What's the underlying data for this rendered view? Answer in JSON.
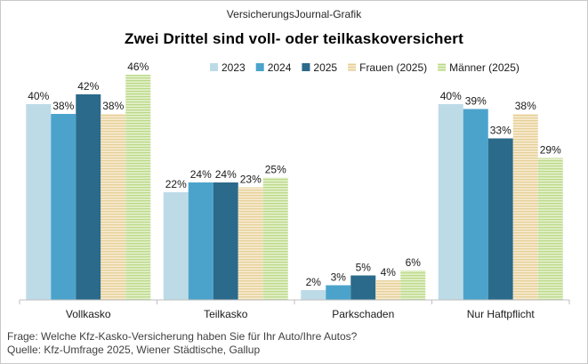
{
  "header": {
    "source_label": "VersicherungsJournal-Grafik"
  },
  "footer": {
    "question": "Frage:  Welche Kfz-Kasko-Versicherung  haben  Sie für Ihr Auto/Ihre  Autos?",
    "source": "Quelle:  Kfz-Umfrage  2025,  Wiener Städtische, Gallup"
  },
  "colors": {
    "2023": "#bddbe7",
    "2024": "#4ba3cc",
    "2025": "#2b6a8a",
    "frauen": "#efdcae",
    "maenner": "#cfe6a3"
  },
  "chart_data": {
    "type": "bar",
    "title": "Zwei Drittel sind voll- oder teilkaskoversichert",
    "xlabel": "",
    "ylabel": "",
    "ylim": [
      0,
      50
    ],
    "grid": false,
    "legend": "top-right",
    "categories": [
      "Vollkasko",
      "Teilkasko",
      "Parkschaden",
      "Nur Haftpflicht"
    ],
    "series": [
      {
        "key": "2023",
        "name": "2023",
        "values": [
          40,
          22,
          2,
          40
        ],
        "labels": [
          "40%",
          "22%",
          "2%",
          "40%"
        ]
      },
      {
        "key": "2024",
        "name": "2024",
        "values": [
          38,
          24,
          3,
          39
        ],
        "labels": [
          "38%",
          "24%",
          "3%",
          "39%"
        ]
      },
      {
        "key": "2025",
        "name": "2025",
        "values": [
          42,
          24,
          5,
          33
        ],
        "labels": [
          "42%",
          "24%",
          "5%",
          "33%"
        ]
      },
      {
        "key": "frauen",
        "name": "Frauen (2025)",
        "values": [
          38,
          23,
          4,
          38
        ],
        "labels": [
          "38%",
          "23%",
          "4%",
          "38%"
        ]
      },
      {
        "key": "maenner",
        "name": "Männer (2025)",
        "values": [
          46,
          25,
          6,
          29
        ],
        "labels": [
          "46%",
          "25%",
          "6%",
          "29%"
        ]
      }
    ]
  }
}
